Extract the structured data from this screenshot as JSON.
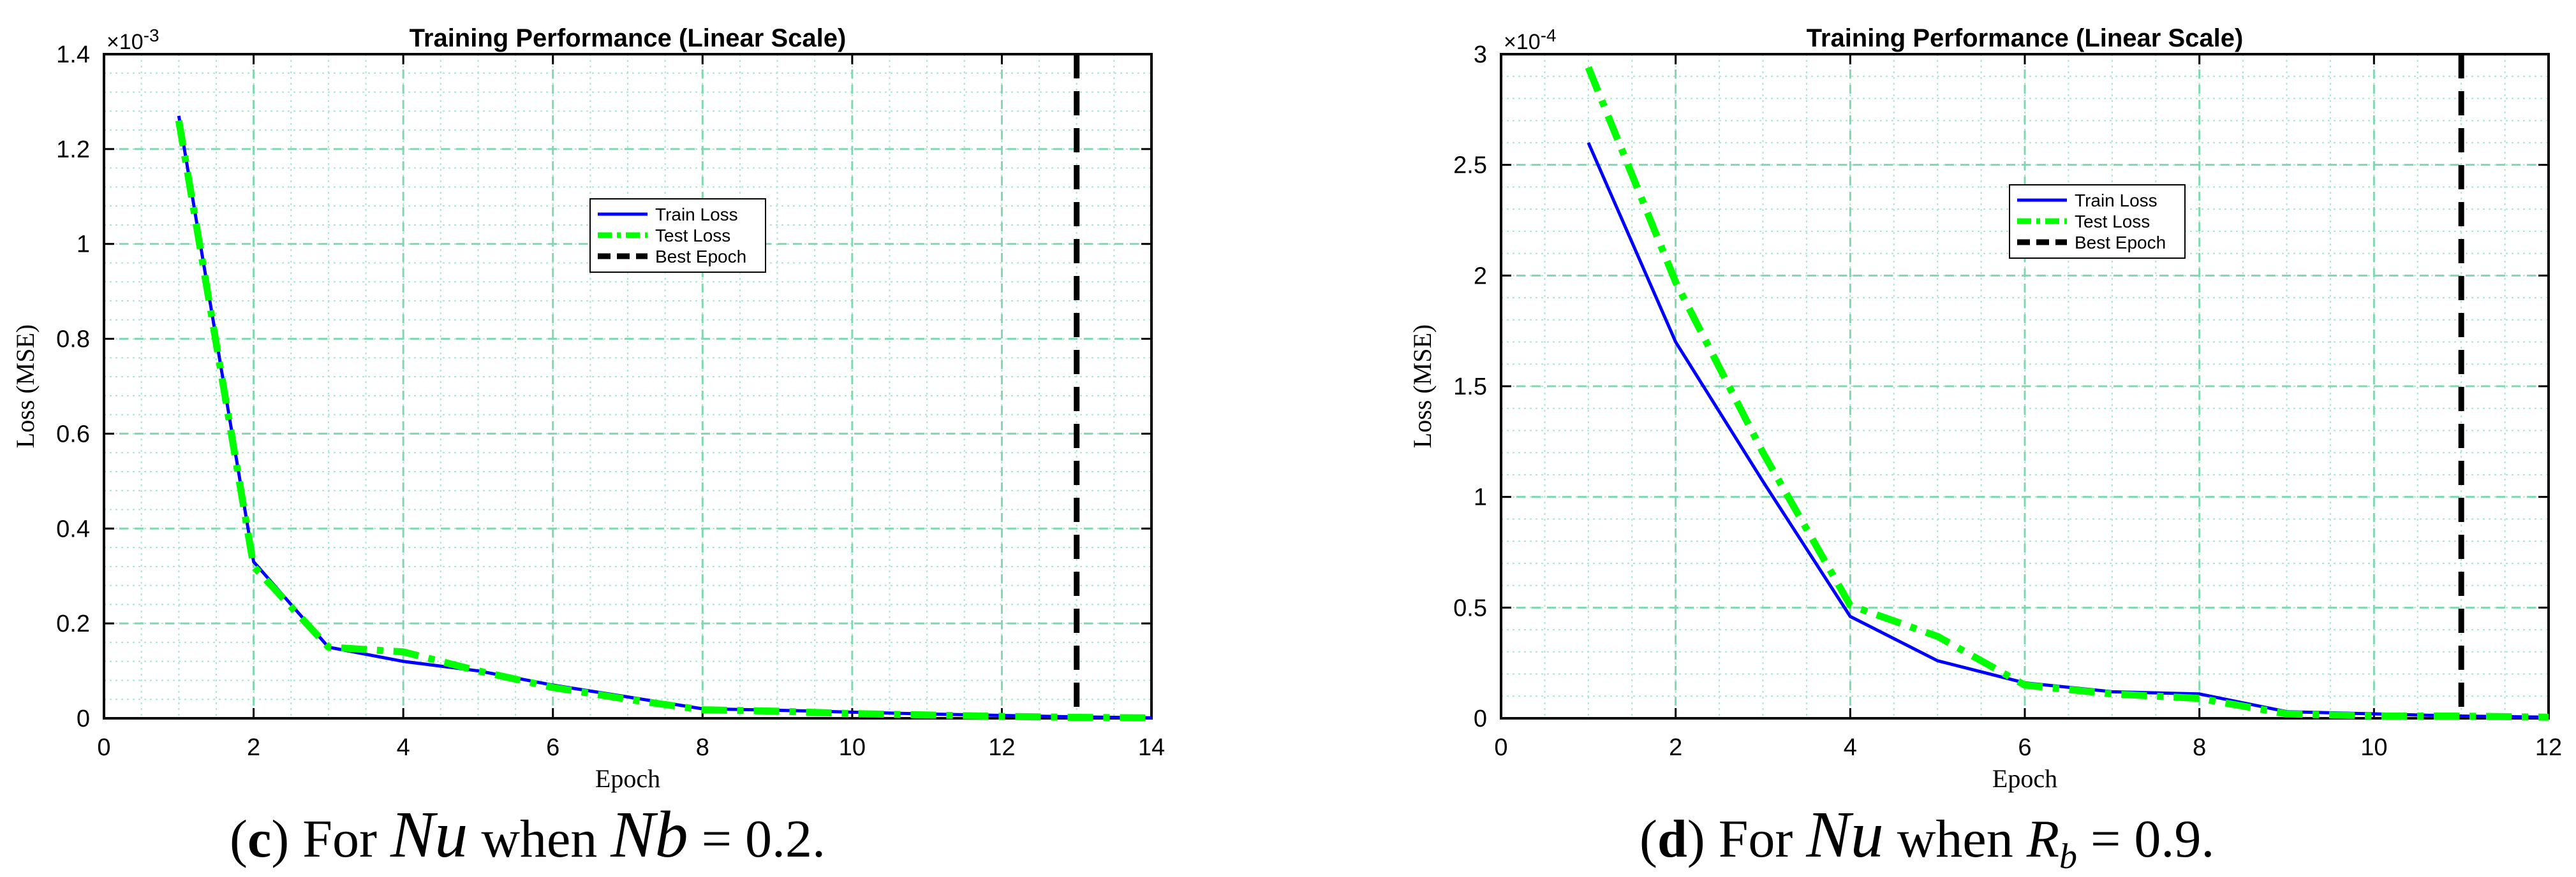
{
  "charts": [
    {
      "caption": {
        "letter": "c",
        "pre": " For ",
        "var": "Nu",
        "mid": " when ",
        "param": "Nb",
        "eq": " = 0.2",
        "post": "."
      }
    },
    {
      "caption": {
        "letter": "d",
        "pre": " For ",
        "var": "Nu",
        "mid": " when ",
        "param": "R",
        "param_sub": "b",
        "eq": " = 0.9",
        "post": "."
      }
    }
  ],
  "chart_data": [
    {
      "type": "line",
      "title": "Training Performance (Linear Scale)",
      "xlabel": "Epoch",
      "ylabel": "Loss (MSE)",
      "y_multiplier": "×10^-3",
      "y_multiplier_base": "×10",
      "y_multiplier_exp": "-3",
      "xlim": [
        0,
        14
      ],
      "ylim": [
        0,
        1.4
      ],
      "xticks": [
        0,
        2,
        4,
        6,
        8,
        10,
        12,
        14
      ],
      "yticks": [
        0,
        0.2,
        0.4,
        0.6,
        0.8,
        1,
        1.2,
        1.4
      ],
      "grid": true,
      "legend_position": "upper-center",
      "series": [
        {
          "name": "Train Loss",
          "color": "#0000ff",
          "style": "solid",
          "x": [
            1,
            2,
            3,
            4,
            5,
            6,
            7,
            8,
            9,
            10,
            11,
            12,
            13,
            14
          ],
          "y": [
            1.27,
            0.33,
            0.15,
            0.12,
            0.1,
            0.07,
            0.045,
            0.02,
            0.017,
            0.013,
            0.009,
            0.006,
            0.003,
            0.001
          ]
        },
        {
          "name": "Test Loss",
          "color": "#00ff00",
          "style": "dashdot",
          "x": [
            1,
            2,
            3,
            4,
            5,
            6,
            7,
            8,
            9,
            10,
            11,
            12,
            13,
            14
          ],
          "y": [
            1.26,
            0.32,
            0.15,
            0.14,
            0.1,
            0.065,
            0.04,
            0.018,
            0.015,
            0.01,
            0.007,
            0.004,
            0.002,
            0.001
          ]
        },
        {
          "name": "Best Epoch",
          "color": "#000000",
          "style": "dashed",
          "vline": 13
        }
      ]
    },
    {
      "type": "line",
      "title": "Training Performance (Linear Scale)",
      "xlabel": "Epoch",
      "ylabel": "Loss (MSE)",
      "y_multiplier": "×10^-4",
      "y_multiplier_base": "×10",
      "y_multiplier_exp": "-4",
      "xlim": [
        0,
        12
      ],
      "ylim": [
        0,
        3
      ],
      "xticks": [
        0,
        2,
        4,
        6,
        8,
        10,
        12
      ],
      "yticks": [
        0,
        0.5,
        1,
        1.5,
        2,
        2.5,
        3
      ],
      "grid": true,
      "legend_position": "upper-center",
      "series": [
        {
          "name": "Train Loss",
          "color": "#0000ff",
          "style": "solid",
          "x": [
            1,
            2,
            3,
            4,
            5,
            6,
            7,
            8,
            9,
            10,
            11,
            12
          ],
          "y": [
            2.6,
            1.7,
            1.07,
            0.46,
            0.26,
            0.16,
            0.12,
            0.11,
            0.03,
            0.02,
            0.01,
            0.005
          ]
        },
        {
          "name": "Test Loss",
          "color": "#00ff00",
          "style": "dashdot",
          "x": [
            1,
            2,
            3,
            4,
            5,
            6,
            7,
            8,
            9,
            10,
            11,
            12
          ],
          "y": [
            2.94,
            1.97,
            1.2,
            0.51,
            0.37,
            0.15,
            0.11,
            0.09,
            0.02,
            0.01,
            0.01,
            0.005
          ]
        },
        {
          "name": "Best Epoch",
          "color": "#000000",
          "style": "dashed",
          "vline": 11
        }
      ]
    }
  ]
}
